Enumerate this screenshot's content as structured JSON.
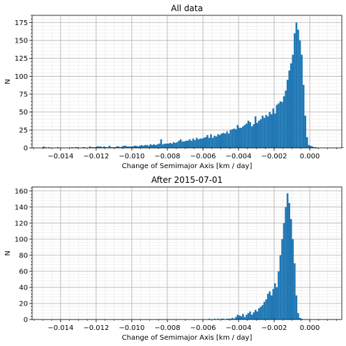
{
  "chart_data": [
    {
      "type": "bar",
      "title": "All data",
      "xlabel": "Change of Semimajor Axis [km / day]",
      "ylabel": "N",
      "xlim": [
        -0.0156,
        0.0018
      ],
      "ylim": [
        0,
        185
      ],
      "xticks": [
        -0.014,
        -0.012,
        -0.01,
        -0.008,
        -0.006,
        -0.004,
        -0.002,
        0.0
      ],
      "xtick_labels": [
        "−0.014",
        "−0.012",
        "−0.010",
        "−0.008",
        "−0.006",
        "−0.004",
        "−0.002",
        "0.000"
      ],
      "yticks": [
        0,
        25,
        50,
        75,
        100,
        125,
        150,
        175
      ],
      "grid": true,
      "bin_start": -0.015,
      "bin_width": 0.0001,
      "values": [
        2,
        1,
        0,
        1,
        0,
        0,
        0,
        0,
        1,
        0,
        0,
        0,
        0,
        0,
        0,
        0,
        1,
        0,
        1,
        1,
        0,
        0,
        1,
        1,
        0,
        0,
        2,
        1,
        1,
        1,
        2,
        2,
        2,
        1,
        2,
        1,
        1,
        3,
        1,
        1,
        1,
        2,
        2,
        1,
        2,
        3,
        3,
        2,
        2,
        2,
        2,
        3,
        3,
        2,
        3,
        4,
        3,
        4,
        4,
        3,
        5,
        4,
        5,
        4,
        5,
        6,
        12,
        5,
        6,
        6,
        6,
        7,
        6,
        8,
        7,
        8,
        10,
        12,
        9,
        9,
        10,
        10,
        12,
        10,
        13,
        11,
        14,
        12,
        13,
        13,
        14,
        15,
        18,
        14,
        19,
        14,
        17,
        16,
        19,
        18,
        20,
        21,
        20,
        23,
        20,
        25,
        26,
        27,
        26,
        32,
        28,
        28,
        30,
        32,
        34,
        38,
        36,
        30,
        33,
        44,
        35,
        38,
        40,
        45,
        42,
        46,
        44,
        50,
        47,
        55,
        48,
        60,
        62,
        65,
        64,
        72,
        80,
        95,
        108,
        118,
        130,
        160,
        175,
        165,
        150,
        130,
        88,
        45,
        15,
        4,
        3,
        2,
        1,
        1,
        0,
        0,
        0,
        0,
        0,
        0,
        0,
        0,
        0,
        0,
        0,
        0,
        0,
        0,
        1
      ]
    },
    {
      "type": "bar",
      "title": "After 2015-07-01",
      "xlabel": "Change of Semimajor Axis [km / day]",
      "ylabel": "N",
      "xlim": [
        -0.0156,
        0.0018
      ],
      "ylim": [
        0,
        165
      ],
      "xticks": [
        -0.014,
        -0.012,
        -0.01,
        -0.008,
        -0.006,
        -0.004,
        -0.002,
        0.0
      ],
      "xtick_labels": [
        "−0.014",
        "−0.012",
        "−0.010",
        "−0.008",
        "−0.006",
        "−0.004",
        "−0.002",
        "0.000"
      ],
      "yticks": [
        0,
        20,
        40,
        60,
        80,
        100,
        120,
        140,
        160
      ],
      "grid": true,
      "bin_start": -0.015,
      "bin_width": 0.0001,
      "values": [
        0,
        0,
        0,
        0,
        0,
        0,
        0,
        0,
        0,
        0,
        0,
        0,
        0,
        0,
        0,
        0,
        0,
        0,
        0,
        0,
        0,
        0,
        0,
        0,
        0,
        0,
        0,
        0,
        0,
        0,
        0,
        0,
        0,
        0,
        0,
        0,
        0,
        0,
        0,
        0,
        0,
        0,
        0,
        0,
        0,
        0,
        0,
        0,
        0,
        0,
        0,
        0,
        0,
        0,
        0,
        0,
        0,
        0,
        0,
        0,
        0,
        0,
        0,
        0,
        0,
        0,
        0,
        0,
        0,
        0,
        0,
        0,
        0,
        0,
        0,
        0,
        0,
        0,
        0,
        0,
        0,
        0,
        0,
        0,
        0,
        0,
        0,
        0,
        0,
        0,
        0,
        0,
        0,
        1,
        0,
        0,
        1,
        0,
        1,
        0,
        1,
        1,
        0,
        1,
        1,
        1,
        2,
        1,
        3,
        6,
        5,
        4,
        7,
        3,
        6,
        8,
        10,
        6,
        9,
        12,
        10,
        14,
        16,
        18,
        22,
        25,
        32,
        35,
        30,
        38,
        45,
        40,
        60,
        80,
        100,
        120,
        140,
        157,
        145,
        125,
        100,
        70,
        30,
        8,
        2,
        1,
        0,
        0,
        0,
        0,
        0,
        0,
        0,
        0,
        0,
        0,
        0,
        0,
        0,
        0,
        0,
        0,
        0,
        0,
        0,
        0,
        0
      ]
    }
  ]
}
